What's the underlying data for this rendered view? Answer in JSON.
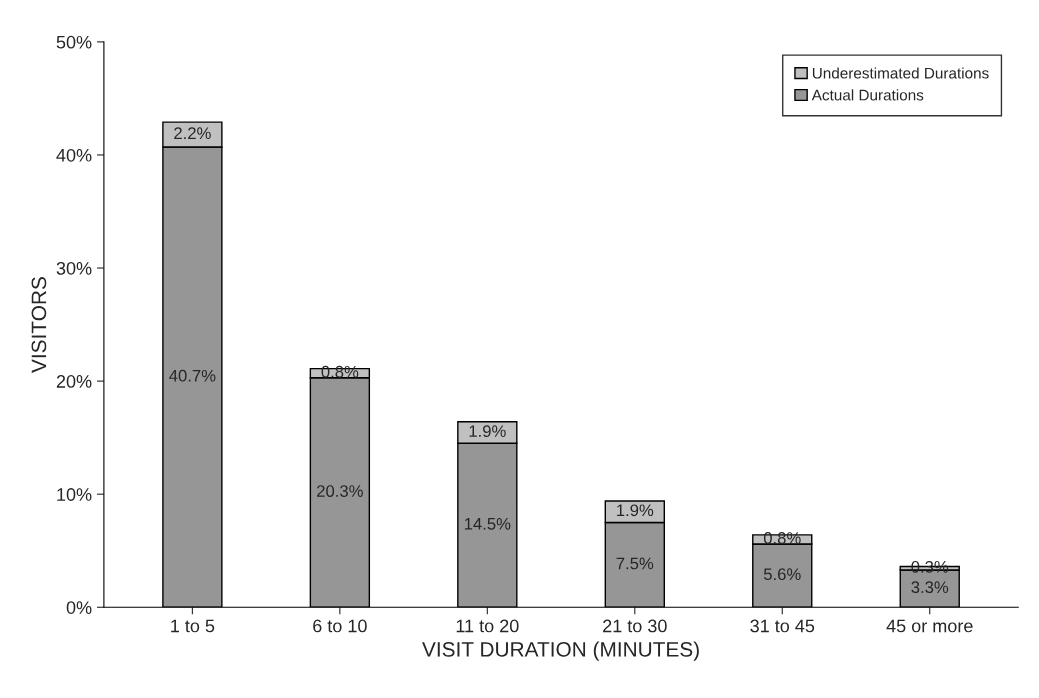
{
  "chart_data": {
    "type": "bar",
    "stacked": true,
    "xlabel": "VISIT DURATION (MINUTES)",
    "ylabel": "VISITORS",
    "categories": [
      "1 to 5",
      "6 to 10",
      "11 to 20",
      "21 to 30",
      "31 to 45",
      "45 or more"
    ],
    "series": [
      {
        "name": "Actual Durations",
        "color": "#969696",
        "values": [
          40.7,
          20.3,
          14.5,
          7.5,
          5.6,
          3.3
        ],
        "value_labels": [
          "40.7%",
          "20.3%",
          "14.5%",
          "7.5%",
          "5.6%",
          "3.3%"
        ]
      },
      {
        "name": "Underestimated Durations",
        "color": "#c0c0c0",
        "values": [
          2.2,
          0.8,
          1.9,
          1.9,
          0.8,
          0.3
        ],
        "value_labels": [
          "2.2%",
          "0.8%",
          "1.9%",
          "1.9%",
          "0.8%",
          "0.3%"
        ]
      }
    ],
    "ylim": [
      0,
      50
    ],
    "yticks": [
      {
        "value": 0,
        "label": "0%"
      },
      {
        "value": 10,
        "label": "10%"
      },
      {
        "value": 20,
        "label": "20%"
      },
      {
        "value": 30,
        "label": "30%"
      },
      {
        "value": 40,
        "label": "40%"
      },
      {
        "value": 50,
        "label": "50%"
      }
    ],
    "grid": false,
    "legend": "top right"
  }
}
